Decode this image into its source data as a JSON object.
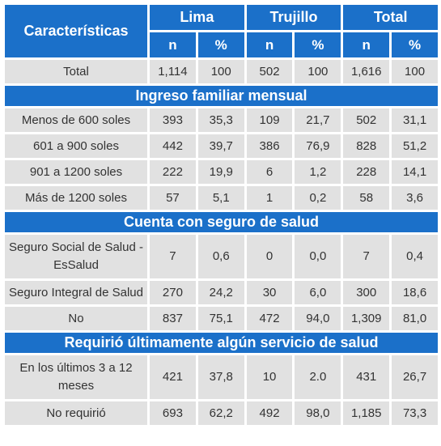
{
  "header": {
    "title": "Características",
    "groups": [
      "Lima",
      "Trujillo",
      "Total"
    ],
    "subheaders": [
      "n",
      "%",
      "n",
      "%",
      "n",
      "%"
    ]
  },
  "total_row": [
    "Total",
    "1,114",
    "100",
    "502",
    "100",
    "1,616",
    "100"
  ],
  "sections": [
    {
      "title": "Ingreso familiar mensual",
      "rows": [
        [
          "Menos de 600 soles",
          "393",
          "35,3",
          "109",
          "21,7",
          "502",
          "31,1"
        ],
        [
          "601 a 900 soles",
          "442",
          "39,7",
          "386",
          "76,9",
          "828",
          "51,2"
        ],
        [
          "901 a 1200 soles",
          "222",
          "19,9",
          "6",
          "1,2",
          "228",
          "14,1"
        ],
        [
          "Más de 1200 soles",
          "57",
          "5,1",
          "1",
          "0,2",
          "58",
          "3,6"
        ]
      ]
    },
    {
      "title": "Cuenta con seguro de salud",
      "rows": [
        [
          "Seguro Social de Salud - EsSalud",
          "7",
          "0,6",
          "0",
          "0,0",
          "7",
          "0,4"
        ],
        [
          "Seguro Integral de Salud",
          "270",
          "24,2",
          "30",
          "6,0",
          "300",
          "18,6"
        ],
        [
          "No",
          "837",
          "75,1",
          "472",
          "94,0",
          "1,309",
          "81,0"
        ]
      ]
    },
    {
      "title": "Requirió últimamente algún servicio de salud",
      "rows": [
        [
          "En los últimos 3 a 12 meses",
          "421",
          "37,8",
          "10",
          "2.0",
          "431",
          "26,7"
        ],
        [
          "No requirió",
          "693",
          "62,2",
          "492",
          "98,0",
          "1,185",
          "73,3"
        ]
      ]
    }
  ]
}
